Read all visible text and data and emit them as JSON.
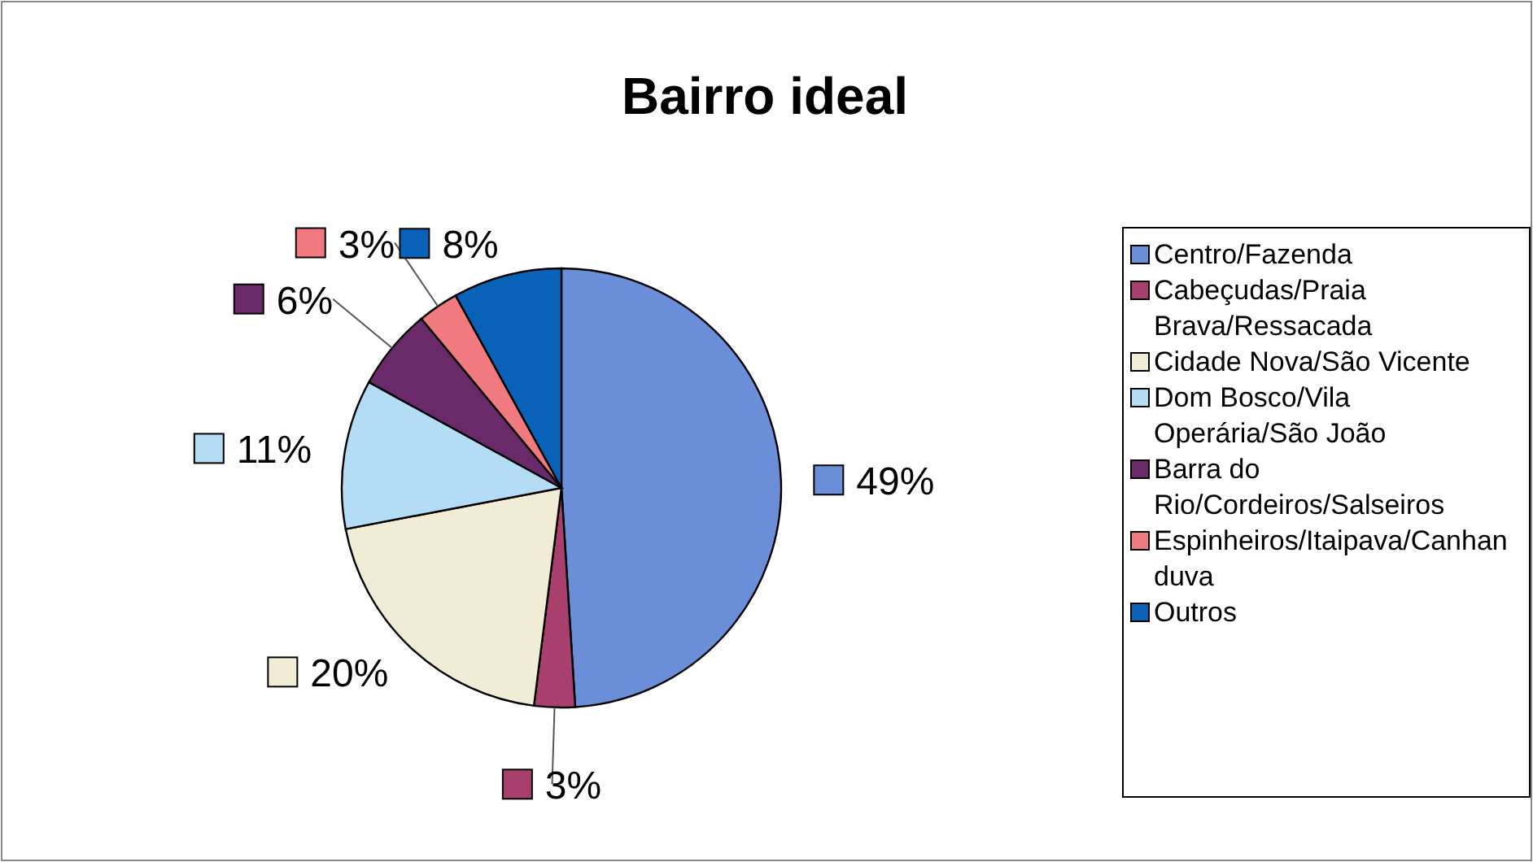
{
  "chart_data": {
    "type": "pie",
    "title": "Bairro ideal",
    "categories": [
      "Centro/Fazenda",
      "Cabeçudas/Praia Brava/Ressacada",
      "Cidade Nova/São Vicente",
      "Dom Bosco/Vila Operária/São João",
      "Barra do Rio/Cordeiros/Salseiros",
      "Espinheiros/Itaipava/Canhanduva",
      "Outros"
    ],
    "values": [
      49,
      3,
      20,
      11,
      6,
      3,
      8
    ],
    "value_labels": [
      "49%",
      "3%",
      "20%",
      "11%",
      "6%",
      "3%",
      "8%"
    ],
    "colors": [
      "#6a8fd8",
      "#a8406e",
      "#f0ecd6",
      "#b4dcf5",
      "#6a2a6a",
      "#f07a80",
      "#0a62b8"
    ],
    "legend": "right"
  }
}
